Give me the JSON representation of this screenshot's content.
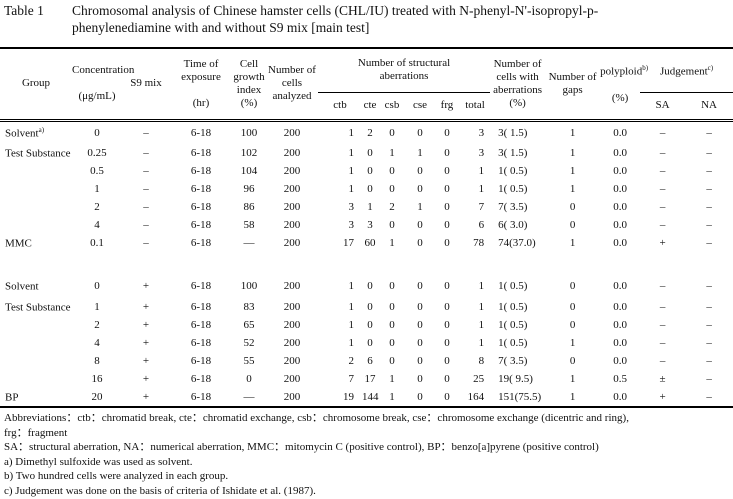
{
  "title": {
    "label": "Table 1",
    "line1": "Chromosomal analysis of Chinese hamster cells (CHL/IU) treated with N-phenyl-N'-isopropyl-p-",
    "line2": "phenylenediamine with and without S9 mix [main test]"
  },
  "headers": {
    "group": "Group",
    "concentration": "Concentration",
    "concentration_unit": "(μg/mL)",
    "s9": "S9 mix",
    "time": "Time of exposure",
    "time_unit": "(hr)",
    "growth": "Cell growth index",
    "growth_unit": "(%)",
    "cells": "Number of cells analyzed",
    "structural": "Number of structural aberrations",
    "ctb": "ctb",
    "cte": "cte",
    "csb": "csb",
    "cse": "cse",
    "frg": "frg",
    "total": "total",
    "cells_ab": "Number of cells with aberrations",
    "cells_ab_unit": "(%)",
    "gaps": "Number of gaps",
    "polyploid": "polyploid",
    "polyploid_sup": "b)",
    "polyploid_unit": "(%)",
    "judgement": "Judgement",
    "judgement_sup": "c)",
    "sa": "SA",
    "na": "NA"
  },
  "rows_without_s9": [
    {
      "group": "Solvent",
      "sup": "a)",
      "conc": "0",
      "s9": "–",
      "time": "6-18",
      "growth": "100",
      "cells": "200",
      "ctb": "1",
      "cte": "2",
      "csb": "0",
      "cse": "0",
      "frg": "0",
      "total": "3",
      "cwa": "3( 1.5)",
      "gaps": "1",
      "poly": "0.0",
      "sa": "–",
      "na": "–"
    },
    {
      "group": "Test Substance",
      "sup": "",
      "conc": "0.25",
      "s9": "–",
      "time": "6-18",
      "growth": "102",
      "cells": "200",
      "ctb": "1",
      "cte": "0",
      "csb": "1",
      "cse": "1",
      "frg": "0",
      "total": "3",
      "cwa": "3( 1.5)",
      "gaps": "1",
      "poly": "0.0",
      "sa": "–",
      "na": "–"
    },
    {
      "group": "",
      "sup": "",
      "conc": "0.5",
      "s9": "–",
      "time": "6-18",
      "growth": "104",
      "cells": "200",
      "ctb": "1",
      "cte": "0",
      "csb": "0",
      "cse": "0",
      "frg": "0",
      "total": "1",
      "cwa": "1( 0.5)",
      "gaps": "1",
      "poly": "0.0",
      "sa": "–",
      "na": "–"
    },
    {
      "group": "",
      "sup": "",
      "conc": "1",
      "s9": "–",
      "time": "6-18",
      "growth": "96",
      "cells": "200",
      "ctb": "1",
      "cte": "0",
      "csb": "0",
      "cse": "0",
      "frg": "0",
      "total": "1",
      "cwa": "1( 0.5)",
      "gaps": "1",
      "poly": "0.0",
      "sa": "–",
      "na": "–"
    },
    {
      "group": "",
      "sup": "",
      "conc": "2",
      "s9": "–",
      "time": "6-18",
      "growth": "86",
      "cells": "200",
      "ctb": "3",
      "cte": "1",
      "csb": "2",
      "cse": "1",
      "frg": "0",
      "total": "7",
      "cwa": "7( 3.5)",
      "gaps": "0",
      "poly": "0.0",
      "sa": "–",
      "na": "–"
    },
    {
      "group": "",
      "sup": "",
      "conc": "4",
      "s9": "–",
      "time": "6-18",
      "growth": "58",
      "cells": "200",
      "ctb": "3",
      "cte": "3",
      "csb": "0",
      "cse": "0",
      "frg": "0",
      "total": "6",
      "cwa": "6( 3.0)",
      "gaps": "0",
      "poly": "0.0",
      "sa": "–",
      "na": "–"
    },
    {
      "group": "MMC",
      "sup": "",
      "conc": "0.1",
      "s9": "–",
      "time": "6-18",
      "growth": "—",
      "cells": "200",
      "ctb": "17",
      "cte": "60",
      "csb": "1",
      "cse": "0",
      "frg": "0",
      "total": "78",
      "cwa": "74(37.0)",
      "gaps": "1",
      "poly": "0.0",
      "sa": "+",
      "na": "–"
    }
  ],
  "rows_with_s9": [
    {
      "group": "Solvent",
      "sup": "",
      "conc": "0",
      "s9": "+",
      "time": "6-18",
      "growth": "100",
      "cells": "200",
      "ctb": "1",
      "cte": "0",
      "csb": "0",
      "cse": "0",
      "frg": "0",
      "total": "1",
      "cwa": "1( 0.5)",
      "gaps": "0",
      "poly": "0.0",
      "sa": "–",
      "na": "–"
    },
    {
      "group": "Test Substance",
      "sup": "",
      "conc": "1",
      "s9": "+",
      "time": "6-18",
      "growth": "83",
      "cells": "200",
      "ctb": "1",
      "cte": "0",
      "csb": "0",
      "cse": "0",
      "frg": "0",
      "total": "1",
      "cwa": "1( 0.5)",
      "gaps": "0",
      "poly": "0.0",
      "sa": "–",
      "na": "–"
    },
    {
      "group": "",
      "sup": "",
      "conc": "2",
      "s9": "+",
      "time": "6-18",
      "growth": "65",
      "cells": "200",
      "ctb": "1",
      "cte": "0",
      "csb": "0",
      "cse": "0",
      "frg": "0",
      "total": "1",
      "cwa": "1( 0.5)",
      "gaps": "0",
      "poly": "0.0",
      "sa": "–",
      "na": "–"
    },
    {
      "group": "",
      "sup": "",
      "conc": "4",
      "s9": "+",
      "time": "6-18",
      "growth": "52",
      "cells": "200",
      "ctb": "1",
      "cte": "0",
      "csb": "0",
      "cse": "0",
      "frg": "0",
      "total": "1",
      "cwa": "1( 0.5)",
      "gaps": "1",
      "poly": "0.0",
      "sa": "–",
      "na": "–"
    },
    {
      "group": "",
      "sup": "",
      "conc": "8",
      "s9": "+",
      "time": "6-18",
      "growth": "55",
      "cells": "200",
      "ctb": "2",
      "cte": "6",
      "csb": "0",
      "cse": "0",
      "frg": "0",
      "total": "8",
      "cwa": "7( 3.5)",
      "gaps": "0",
      "poly": "0.0",
      "sa": "–",
      "na": "–"
    },
    {
      "group": "",
      "sup": "",
      "conc": "16",
      "s9": "+",
      "time": "6-18",
      "growth": "0",
      "cells": "200",
      "ctb": "7",
      "cte": "17",
      "csb": "1",
      "cse": "0",
      "frg": "0",
      "total": "25",
      "cwa": "19( 9.5)",
      "gaps": "1",
      "poly": "0.5",
      "sa": "±",
      "na": "–"
    },
    {
      "group": "BP",
      "sup": "",
      "conc": "20",
      "s9": "+",
      "time": "6-18",
      "growth": "—",
      "cells": "200",
      "ctb": "19",
      "cte": "144",
      "csb": "1",
      "cse": "0",
      "frg": "0",
      "total": "164",
      "cwa": "151(75.5)",
      "gaps": "1",
      "poly": "0.0",
      "sa": "+",
      "na": "–"
    }
  ],
  "footnotes": [
    "Abbreviations：ctb：chromatid break, cte：chromatid exchange, csb：chromosome break, cse：chromosome exchange (dicentric and ring),",
    "frg：fragment",
    "SA：structural aberration, NA：numerical aberration, MMC：mitomycin C (positive control), BP：benzo[a]pyrene (positive control)",
    "a) Dimethyl sulfoxide was used as solvent.",
    "b) Two hundred cells were analyzed in each group.",
    "c) Judgement was done on the basis of criteria of Ishidate et al. (1987)."
  ]
}
